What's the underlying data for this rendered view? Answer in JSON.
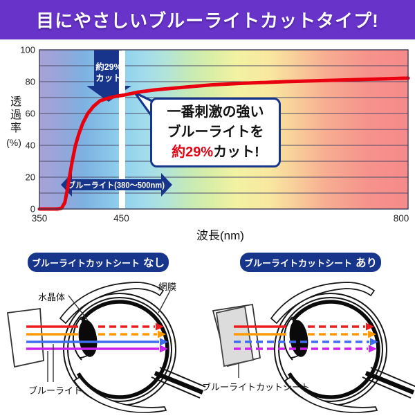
{
  "colors": {
    "banner_bg": "#6733c9",
    "navy": "#17358a",
    "accent_red": "#e60012",
    "sheet_gray": "#dcdcdc"
  },
  "banner": {
    "title": "目にやさしいブルーライトカットタイプ!"
  },
  "chart_data": {
    "type": "line",
    "title": "",
    "xlabel": "波長(nm)",
    "ylabel": "透過率",
    "ylabel_unit": "(%)",
    "xlim": [
      350,
      800
    ],
    "ylim": [
      0,
      100
    ],
    "xticks": [
      350,
      450,
      800
    ],
    "yticks": [
      100,
      80,
      60,
      40,
      20,
      0
    ],
    "grid_step": 10,
    "grid": true,
    "legend_position": "none",
    "spectrum_stops": [
      [
        0,
        "#aaa2d8"
      ],
      [
        0.067,
        "#93a6da"
      ],
      [
        0.122,
        "#7db2e2"
      ],
      [
        0.222,
        "#8fd0ee"
      ],
      [
        0.289,
        "#a3dcec"
      ],
      [
        0.344,
        "#b2e4d8"
      ],
      [
        0.4,
        "#c4eab8"
      ],
      [
        0.467,
        "#daeea6"
      ],
      [
        0.533,
        "#f2f2a2"
      ],
      [
        0.622,
        "#f9e8a0"
      ],
      [
        0.689,
        "#f8d09a"
      ],
      [
        0.778,
        "#f7ad92"
      ],
      [
        0.889,
        "#f6938c"
      ],
      [
        1,
        "#f58a8a"
      ]
    ],
    "highlight_wavelength_nm": 450,
    "series": [
      {
        "name": "透過率",
        "color": "#e8000f",
        "points": [
          [
            350,
            0
          ],
          [
            366,
            0
          ],
          [
            372,
            0
          ],
          [
            377,
            0.5
          ],
          [
            381,
            4
          ],
          [
            384,
            12
          ],
          [
            387,
            21
          ],
          [
            390,
            30
          ],
          [
            394,
            40
          ],
          [
            398,
            47
          ],
          [
            403,
            54
          ],
          [
            409,
            60
          ],
          [
            416,
            64.5
          ],
          [
            424,
            68
          ],
          [
            433,
            69.5
          ],
          [
            443,
            70.8
          ],
          [
            450,
            71.3
          ],
          [
            455,
            71.8
          ],
          [
            470,
            73.4
          ],
          [
            490,
            74.8
          ],
          [
            520,
            76.2
          ],
          [
            560,
            78
          ],
          [
            600,
            79
          ],
          [
            650,
            80
          ],
          [
            700,
            80.8
          ],
          [
            750,
            81.5
          ],
          [
            800,
            82.2
          ]
        ]
      }
    ],
    "annotations": {
      "cut_arrow": {
        "line1": "約29%",
        "line2": "カット"
      },
      "range_arrow": {
        "label": "ブルーライト(380〜500nm)",
        "from_nm": 380,
        "to_nm": 500
      },
      "callout": {
        "line1": "一番刺激の強い",
        "line2": "ブルーライトを",
        "line3_red": "約29%",
        "line3_black": "カット!"
      }
    }
  },
  "diagrams": {
    "ray_colors": [
      "#ee1c1c",
      "#ff9a00",
      "#3e6cf0",
      "#cc22ee"
    ],
    "left": {
      "badge": "ブルーライトカットシート",
      "badge_em": "なし",
      "lens_label": "水晶体",
      "retina_label": "網膜",
      "bluelight_label": "ブルーライト"
    },
    "right": {
      "badge": "ブルーライトカットシート",
      "badge_em": "あり",
      "sheet_label": "ブルーライトカットシート"
    }
  }
}
